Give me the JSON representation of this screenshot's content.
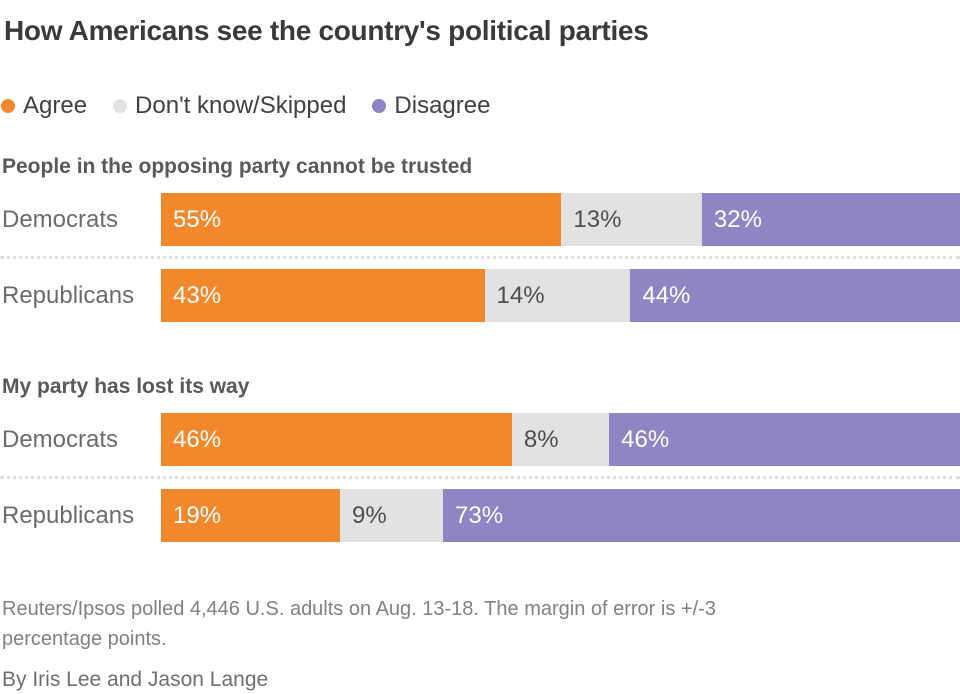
{
  "title": "How Americans see the country's political parties",
  "legend": {
    "items": [
      {
        "label": "Agree",
        "color": "#F1882B"
      },
      {
        "label": "Don't know/Skipped",
        "color": "#E2E2E2"
      },
      {
        "label": "Disagree",
        "color": "#9184C4"
      }
    ]
  },
  "chart_data": [
    {
      "type": "bar",
      "orientation": "horizontal",
      "stacked": true,
      "title": "People in the opposing party cannot be trusted",
      "categories": [
        "Democrats",
        "Republicans"
      ],
      "series": [
        {
          "name": "Agree",
          "color": "#F1882B",
          "values": [
            55,
            43
          ]
        },
        {
          "name": "Don't know/Skipped",
          "color": "#E2E2E2",
          "values": [
            13,
            14
          ]
        },
        {
          "name": "Disagree",
          "color": "#9184C4",
          "values": [
            32,
            44
          ]
        }
      ],
      "xlim": [
        0,
        100
      ],
      "value_labels": "percent",
      "legend_position": "top",
      "grid": false
    },
    {
      "type": "bar",
      "orientation": "horizontal",
      "stacked": true,
      "title": "My party has lost its way",
      "categories": [
        "Democrats",
        "Republicans"
      ],
      "series": [
        {
          "name": "Agree",
          "color": "#F1882B",
          "values": [
            46,
            19
          ]
        },
        {
          "name": "Don't know/Skipped",
          "color": "#E2E2E2",
          "values": [
            8,
            9
          ]
        },
        {
          "name": "Disagree",
          "color": "#9184C4",
          "values": [
            46,
            73
          ]
        }
      ],
      "xlim": [
        0,
        100
      ],
      "value_labels": "percent",
      "legend_position": "top",
      "grid": false
    }
  ],
  "footnote_lines": [
    "Reuters/Ipsos polled 4,446 U.S. adults on Aug. 13-18. The margin of error is +/-3",
    "percentage points."
  ],
  "byline": "By Iris Lee and Jason Lange"
}
